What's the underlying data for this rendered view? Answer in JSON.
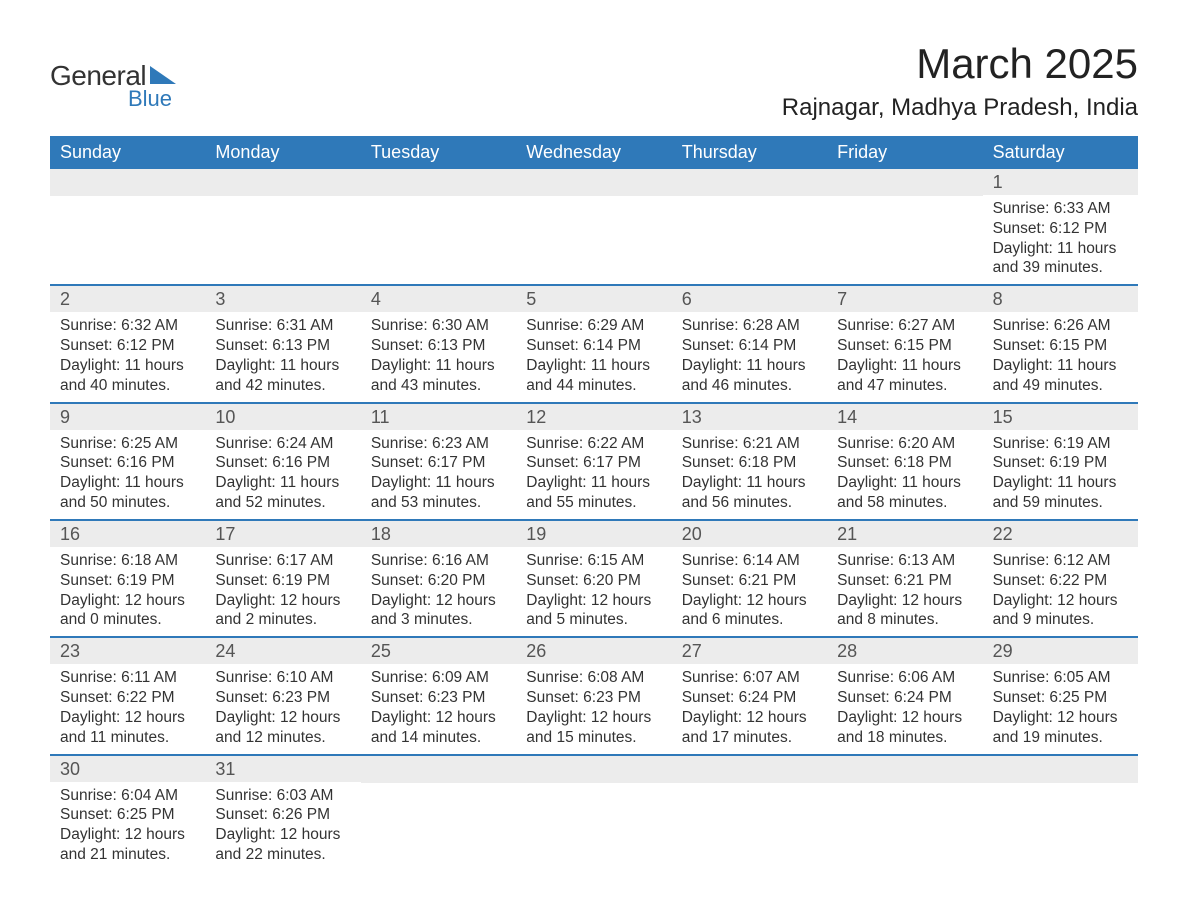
{
  "branding": {
    "logo_text1": "General",
    "logo_text2": "Blue",
    "logo_color": "#2f79b9"
  },
  "header": {
    "month_title": "March 2025",
    "location": "Rajnagar, Madhya Pradesh, India"
  },
  "colors": {
    "header_bg": "#2f79b9",
    "header_text": "#ffffff",
    "daynum_bg": "#ececec",
    "daynum_text": "#555555",
    "body_text": "#333333",
    "week_border": "#2f79b9",
    "page_bg": "#ffffff"
  },
  "typography": {
    "month_title_fontsize": 42,
    "location_fontsize": 24,
    "dow_fontsize": 18,
    "daynum_fontsize": 18,
    "cell_fontsize": 15.5,
    "font_family": "Arial"
  },
  "days_of_week": [
    "Sunday",
    "Monday",
    "Tuesday",
    "Wednesday",
    "Thursday",
    "Friday",
    "Saturday"
  ],
  "labels": {
    "sunrise": "Sunrise:",
    "sunset": "Sunset:",
    "daylight": "Daylight:"
  },
  "weeks": [
    [
      {
        "empty": true
      },
      {
        "empty": true
      },
      {
        "empty": true
      },
      {
        "empty": true
      },
      {
        "empty": true
      },
      {
        "empty": true
      },
      {
        "day": "1",
        "sunrise": "6:33 AM",
        "sunset": "6:12 PM",
        "daylight": "11 hours and 39 minutes."
      }
    ],
    [
      {
        "day": "2",
        "sunrise": "6:32 AM",
        "sunset": "6:12 PM",
        "daylight": "11 hours and 40 minutes."
      },
      {
        "day": "3",
        "sunrise": "6:31 AM",
        "sunset": "6:13 PM",
        "daylight": "11 hours and 42 minutes."
      },
      {
        "day": "4",
        "sunrise": "6:30 AM",
        "sunset": "6:13 PM",
        "daylight": "11 hours and 43 minutes."
      },
      {
        "day": "5",
        "sunrise": "6:29 AM",
        "sunset": "6:14 PM",
        "daylight": "11 hours and 44 minutes."
      },
      {
        "day": "6",
        "sunrise": "6:28 AM",
        "sunset": "6:14 PM",
        "daylight": "11 hours and 46 minutes."
      },
      {
        "day": "7",
        "sunrise": "6:27 AM",
        "sunset": "6:15 PM",
        "daylight": "11 hours and 47 minutes."
      },
      {
        "day": "8",
        "sunrise": "6:26 AM",
        "sunset": "6:15 PM",
        "daylight": "11 hours and 49 minutes."
      }
    ],
    [
      {
        "day": "9",
        "sunrise": "6:25 AM",
        "sunset": "6:16 PM",
        "daylight": "11 hours and 50 minutes."
      },
      {
        "day": "10",
        "sunrise": "6:24 AM",
        "sunset": "6:16 PM",
        "daylight": "11 hours and 52 minutes."
      },
      {
        "day": "11",
        "sunrise": "6:23 AM",
        "sunset": "6:17 PM",
        "daylight": "11 hours and 53 minutes."
      },
      {
        "day": "12",
        "sunrise": "6:22 AM",
        "sunset": "6:17 PM",
        "daylight": "11 hours and 55 minutes."
      },
      {
        "day": "13",
        "sunrise": "6:21 AM",
        "sunset": "6:18 PM",
        "daylight": "11 hours and 56 minutes."
      },
      {
        "day": "14",
        "sunrise": "6:20 AM",
        "sunset": "6:18 PM",
        "daylight": "11 hours and 58 minutes."
      },
      {
        "day": "15",
        "sunrise": "6:19 AM",
        "sunset": "6:19 PM",
        "daylight": "11 hours and 59 minutes."
      }
    ],
    [
      {
        "day": "16",
        "sunrise": "6:18 AM",
        "sunset": "6:19 PM",
        "daylight": "12 hours and 0 minutes."
      },
      {
        "day": "17",
        "sunrise": "6:17 AM",
        "sunset": "6:19 PM",
        "daylight": "12 hours and 2 minutes."
      },
      {
        "day": "18",
        "sunrise": "6:16 AM",
        "sunset": "6:20 PM",
        "daylight": "12 hours and 3 minutes."
      },
      {
        "day": "19",
        "sunrise": "6:15 AM",
        "sunset": "6:20 PM",
        "daylight": "12 hours and 5 minutes."
      },
      {
        "day": "20",
        "sunrise": "6:14 AM",
        "sunset": "6:21 PM",
        "daylight": "12 hours and 6 minutes."
      },
      {
        "day": "21",
        "sunrise": "6:13 AM",
        "sunset": "6:21 PM",
        "daylight": "12 hours and 8 minutes."
      },
      {
        "day": "22",
        "sunrise": "6:12 AM",
        "sunset": "6:22 PM",
        "daylight": "12 hours and 9 minutes."
      }
    ],
    [
      {
        "day": "23",
        "sunrise": "6:11 AM",
        "sunset": "6:22 PM",
        "daylight": "12 hours and 11 minutes."
      },
      {
        "day": "24",
        "sunrise": "6:10 AM",
        "sunset": "6:23 PM",
        "daylight": "12 hours and 12 minutes."
      },
      {
        "day": "25",
        "sunrise": "6:09 AM",
        "sunset": "6:23 PM",
        "daylight": "12 hours and 14 minutes."
      },
      {
        "day": "26",
        "sunrise": "6:08 AM",
        "sunset": "6:23 PM",
        "daylight": "12 hours and 15 minutes."
      },
      {
        "day": "27",
        "sunrise": "6:07 AM",
        "sunset": "6:24 PM",
        "daylight": "12 hours and 17 minutes."
      },
      {
        "day": "28",
        "sunrise": "6:06 AM",
        "sunset": "6:24 PM",
        "daylight": "12 hours and 18 minutes."
      },
      {
        "day": "29",
        "sunrise": "6:05 AM",
        "sunset": "6:25 PM",
        "daylight": "12 hours and 19 minutes."
      }
    ],
    [
      {
        "day": "30",
        "sunrise": "6:04 AM",
        "sunset": "6:25 PM",
        "daylight": "12 hours and 21 minutes."
      },
      {
        "day": "31",
        "sunrise": "6:03 AM",
        "sunset": "6:26 PM",
        "daylight": "12 hours and 22 minutes."
      },
      {
        "empty": true
      },
      {
        "empty": true
      },
      {
        "empty": true
      },
      {
        "empty": true
      },
      {
        "empty": true
      }
    ]
  ]
}
